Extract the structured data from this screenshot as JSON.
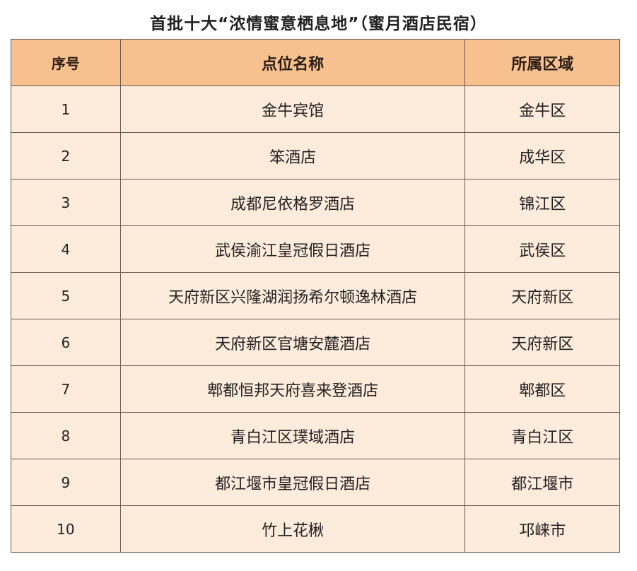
{
  "title": "首批十大“浓情蜜意栖息地”（蜜月酒店民宿）",
  "colors": {
    "header_bg": "#f7c08f",
    "row_bg": "#fdebdc",
    "border": "#6b5a4e"
  },
  "table": {
    "headers": [
      "序号",
      "点位名称",
      "所属区域"
    ],
    "rows": [
      [
        "1",
        "金牛宾馆",
        "金牛区"
      ],
      [
        "2",
        "笨酒店",
        "成华区"
      ],
      [
        "3",
        "成都尼依格罗酒店",
        "锦江区"
      ],
      [
        "4",
        "武侯渝江皇冠假日酒店",
        "武侯区"
      ],
      [
        "5",
        "天府新区兴隆湖润扬希尔顿逸林酒店",
        "天府新区"
      ],
      [
        "6",
        "天府新区官塘安麓酒店",
        "天府新区"
      ],
      [
        "7",
        "郫都恒邦天府喜来登酒店",
        "郫都区"
      ],
      [
        "8",
        "青白江区璞域酒店",
        "青白江区"
      ],
      [
        "9",
        "都江堰市皇冠假日酒店",
        "都江堰市"
      ],
      [
        "10",
        "竹上花楸",
        "邛崃市"
      ]
    ]
  }
}
